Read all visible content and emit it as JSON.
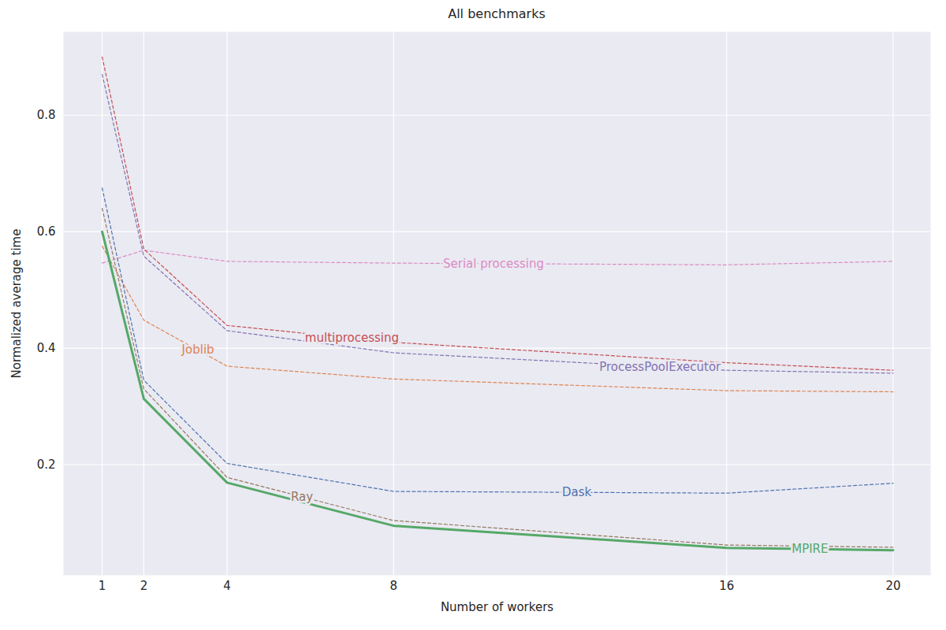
{
  "chart_data": {
    "type": "line",
    "title": "All benchmarks",
    "x_label": "Number of workers",
    "y_label": "Normalized average time",
    "x": [
      1,
      2,
      4,
      8,
      16,
      20
    ],
    "xlim": [
      0.07,
      20.9
    ],
    "xticks": [
      1,
      2,
      4,
      8,
      16,
      20
    ],
    "ylim": [
      0.01,
      0.943
    ],
    "yticks": [
      0.2,
      0.4,
      0.6,
      0.8
    ],
    "grid": true,
    "series": [
      {
        "name": "Serial processing",
        "color": "#da8bc3",
        "line_style": "dashed",
        "values": [
          0.546,
          0.568,
          0.549,
          0.546,
          0.543,
          0.549
        ]
      },
      {
        "name": "multiprocessing",
        "color": "#c44e52",
        "line_style": "dashed",
        "values": [
          0.9,
          0.57,
          0.439,
          0.41,
          0.375,
          0.362
        ]
      },
      {
        "name": "ProcessPoolExecutor",
        "color": "#8172b3",
        "line_style": "dashed",
        "values": [
          0.87,
          0.558,
          0.43,
          0.392,
          0.362,
          0.357
        ]
      },
      {
        "name": "Joblib",
        "color": "#dd8452",
        "line_style": "dashed",
        "values": [
          0.575,
          0.448,
          0.369,
          0.347,
          0.327,
          0.325
        ]
      },
      {
        "name": "Dask",
        "color": "#4c72b0",
        "line_style": "dashed",
        "values": [
          0.675,
          0.345,
          0.202,
          0.154,
          0.151,
          0.168
        ]
      },
      {
        "name": "Ray",
        "color": "#937860",
        "line_style": "dashed",
        "values": [
          0.64,
          0.33,
          0.178,
          0.104,
          0.062,
          0.058
        ]
      },
      {
        "name": "MPIRE",
        "color": "#55a868",
        "line_style": "solid",
        "values": [
          0.6,
          0.313,
          0.169,
          0.095,
          0.057,
          0.053
        ]
      }
    ]
  }
}
